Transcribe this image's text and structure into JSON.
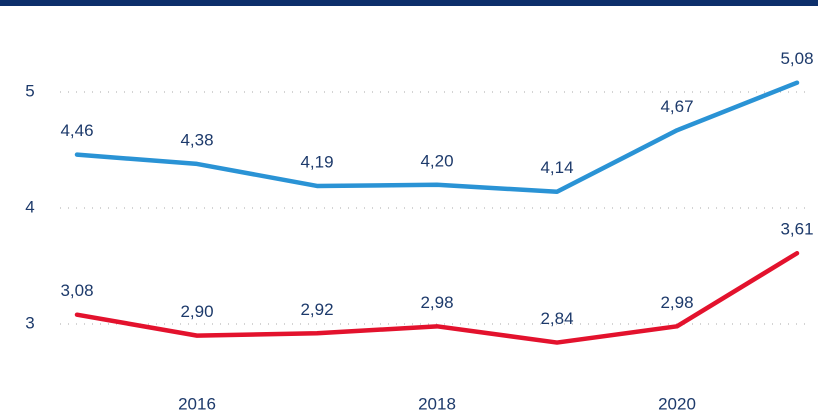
{
  "chart_data": {
    "type": "line",
    "x": [
      2015,
      2016,
      2017,
      2018,
      2019,
      2020,
      2021
    ],
    "xlim": [
      2014.5,
      2021.15
    ],
    "xticks": [
      2016,
      2018,
      2020
    ],
    "ylim": [
      2.4,
      5.65
    ],
    "yticks": [
      3,
      4,
      5
    ],
    "grid": true,
    "series": [
      {
        "color": "#2a93d5",
        "values": [
          4.46,
          4.38,
          4.19,
          4.2,
          4.14,
          4.67,
          5.08
        ],
        "value_labels": [
          "4,46",
          "4,38",
          "4,19",
          "4,20",
          "4,14",
          "4,67",
          "5,08"
        ]
      },
      {
        "color": "#e3122d",
        "values": [
          3.08,
          2.9,
          2.92,
          2.98,
          2.84,
          2.98,
          3.61
        ],
        "value_labels": [
          "3,08",
          "2,90",
          "2,92",
          "2,98",
          "2,84",
          "2,98",
          "3,61"
        ]
      }
    ]
  }
}
